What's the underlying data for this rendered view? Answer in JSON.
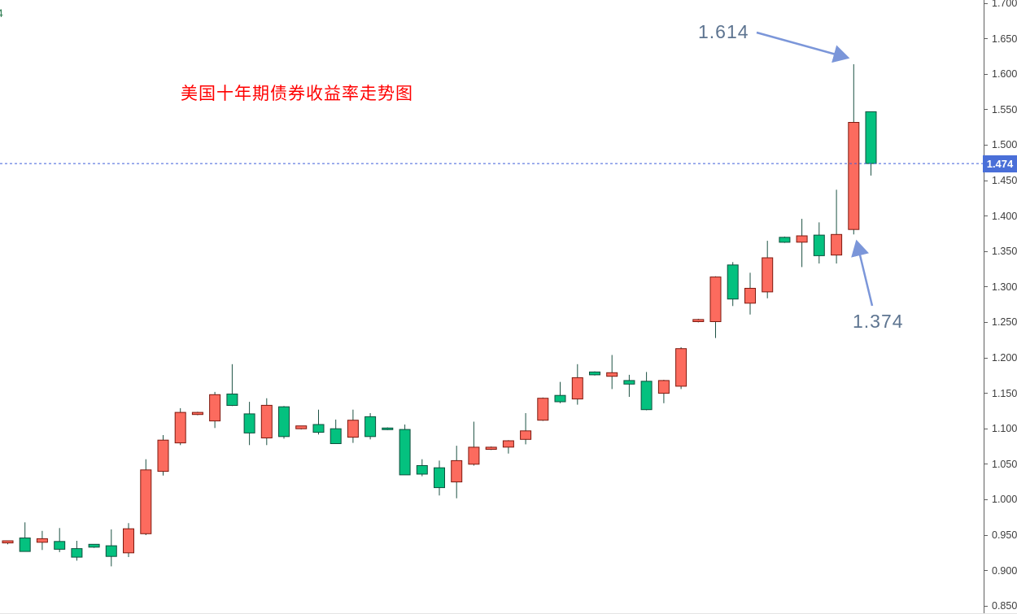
{
  "corner_text": "4",
  "chart_data": {
    "type": "candlestick",
    "title": "美国十年期债券收益率走势图",
    "current_price_label": "1.474",
    "current_price": 1.474,
    "annotations": [
      {
        "label": "1.614",
        "meaning": "high of spike candle"
      },
      {
        "label": "1.374",
        "meaning": "low after spike"
      }
    ],
    "y_axis": {
      "min": 0.85,
      "max": 1.7,
      "step": 0.05,
      "labels": [
        "1.700",
        "1.650",
        "1.600",
        "1.550",
        "1.500",
        "1.450",
        "1.400",
        "1.350",
        "1.300",
        "1.250",
        "1.200",
        "1.150",
        "1.100",
        "1.050",
        "1.000",
        "0.950",
        "0.900",
        "0.850"
      ]
    },
    "colors": {
      "up_fill": "#fc6b5e",
      "up_border": "#7e190f",
      "down_fill": "#04c17f",
      "down_border": "#0e4f3d",
      "wick": "#1d5244",
      "price_line": "#3d5fd9",
      "badge_bg": "#4a6fd8",
      "annotation_text": "#5d7490",
      "arrow": "#7b96d9",
      "title_red": "#ff0000"
    },
    "candles": [
      {
        "o": 0.939,
        "h": 0.942,
        "l": 0.937,
        "c": 0.942
      },
      {
        "o": 0.946,
        "h": 0.968,
        "l": 0.927,
        "c": 0.927
      },
      {
        "o": 0.94,
        "h": 0.956,
        "l": 0.929,
        "c": 0.945
      },
      {
        "o": 0.941,
        "h": 0.96,
        "l": 0.926,
        "c": 0.93
      },
      {
        "o": 0.931,
        "h": 0.942,
        "l": 0.914,
        "c": 0.919
      },
      {
        "o": 0.937,
        "h": 0.937,
        "l": 0.932,
        "c": 0.933
      },
      {
        "o": 0.935,
        "h": 0.958,
        "l": 0.906,
        "c": 0.92
      },
      {
        "o": 0.925,
        "h": 0.967,
        "l": 0.919,
        "c": 0.959
      },
      {
        "o": 0.952,
        "h": 1.057,
        "l": 0.95,
        "c": 1.042
      },
      {
        "o": 1.04,
        "h": 1.091,
        "l": 1.034,
        "c": 1.084
      },
      {
        "o": 1.08,
        "h": 1.129,
        "l": 1.077,
        "c": 1.123
      },
      {
        "o": 1.12,
        "h": 1.124,
        "l": 1.119,
        "c": 1.123
      },
      {
        "o": 1.111,
        "h": 1.152,
        "l": 1.101,
        "c": 1.148
      },
      {
        "o": 1.149,
        "h": 1.191,
        "l": 1.132,
        "c": 1.133
      },
      {
        "o": 1.121,
        "h": 1.138,
        "l": 1.077,
        "c": 1.094
      },
      {
        "o": 1.087,
        "h": 1.143,
        "l": 1.077,
        "c": 1.133
      },
      {
        "o": 1.131,
        "h": 1.132,
        "l": 1.086,
        "c": 1.089
      },
      {
        "o": 1.1,
        "h": 1.104,
        "l": 1.099,
        "c": 1.104
      },
      {
        "o": 1.106,
        "h": 1.127,
        "l": 1.092,
        "c": 1.095
      },
      {
        "o": 1.1,
        "h": 1.113,
        "l": 1.079,
        "c": 1.079
      },
      {
        "o": 1.088,
        "h": 1.127,
        "l": 1.08,
        "c": 1.112
      },
      {
        "o": 1.117,
        "h": 1.122,
        "l": 1.085,
        "c": 1.089
      },
      {
        "o": 1.101,
        "h": 1.102,
        "l": 1.098,
        "c": 1.099
      },
      {
        "o": 1.099,
        "h": 1.106,
        "l": 1.035,
        "c": 1.035
      },
      {
        "o": 1.048,
        "h": 1.057,
        "l": 1.033,
        "c": 1.036
      },
      {
        "o": 1.045,
        "h": 1.055,
        "l": 1.006,
        "c": 1.017
      },
      {
        "o": 1.025,
        "h": 1.076,
        "l": 1.002,
        "c": 1.055
      },
      {
        "o": 1.05,
        "h": 1.11,
        "l": 1.048,
        "c": 1.074
      },
      {
        "o": 1.071,
        "h": 1.075,
        "l": 1.07,
        "c": 1.074
      },
      {
        "o": 1.074,
        "h": 1.084,
        "l": 1.065,
        "c": 1.083
      },
      {
        "o": 1.085,
        "h": 1.122,
        "l": 1.078,
        "c": 1.097
      },
      {
        "o": 1.112,
        "h": 1.144,
        "l": 1.111,
        "c": 1.143
      },
      {
        "o": 1.147,
        "h": 1.166,
        "l": 1.136,
        "c": 1.138
      },
      {
        "o": 1.142,
        "h": 1.191,
        "l": 1.134,
        "c": 1.172
      },
      {
        "o": 1.18,
        "h": 1.181,
        "l": 1.175,
        "c": 1.176
      },
      {
        "o": 1.174,
        "h": 1.204,
        "l": 1.156,
        "c": 1.179
      },
      {
        "o": 1.168,
        "h": 1.176,
        "l": 1.145,
        "c": 1.163
      },
      {
        "o": 1.167,
        "h": 1.18,
        "l": 1.126,
        "c": 1.127
      },
      {
        "o": 1.15,
        "h": 1.169,
        "l": 1.136,
        "c": 1.168
      },
      {
        "o": 1.16,
        "h": 1.215,
        "l": 1.156,
        "c": 1.213
      },
      {
        "o": 1.251,
        "h": 1.255,
        "l": 1.25,
        "c": 1.254
      },
      {
        "o": 1.251,
        "h": 1.315,
        "l": 1.228,
        "c": 1.314
      },
      {
        "o": 1.331,
        "h": 1.335,
        "l": 1.273,
        "c": 1.283
      },
      {
        "o": 1.277,
        "h": 1.32,
        "l": 1.261,
        "c": 1.298
      },
      {
        "o": 1.293,
        "h": 1.365,
        "l": 1.284,
        "c": 1.341
      },
      {
        "o": 1.37,
        "h": 1.371,
        "l": 1.362,
        "c": 1.363
      },
      {
        "o": 1.363,
        "h": 1.396,
        "l": 1.328,
        "c": 1.372
      },
      {
        "o": 1.373,
        "h": 1.391,
        "l": 1.333,
        "c": 1.344
      },
      {
        "o": 1.345,
        "h": 1.437,
        "l": 1.333,
        "c": 1.374
      },
      {
        "o": 1.381,
        "h": 1.614,
        "l": 1.374,
        "c": 1.532
      },
      {
        "o": 1.547,
        "h": 1.547,
        "l": 1.457,
        "c": 1.474
      }
    ]
  }
}
